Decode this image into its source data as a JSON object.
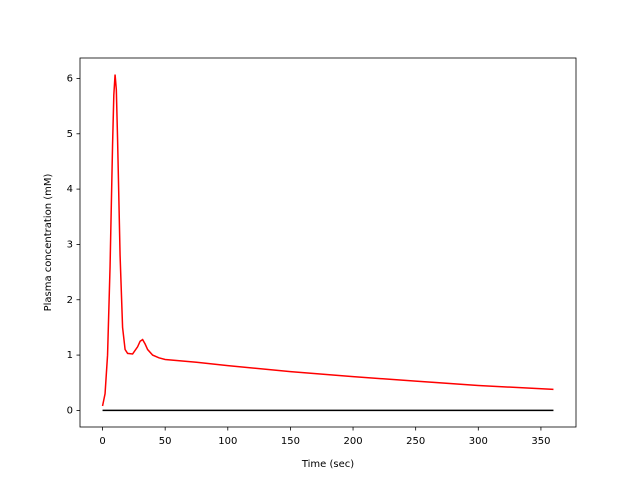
{
  "chart_data": {
    "type": "line",
    "xlabel": "Time (sec)",
    "ylabel": "Plasma concentration (mM)",
    "x": [
      0,
      2,
      4,
      6,
      8,
      9,
      10,
      11,
      12,
      14,
      16,
      18,
      20,
      24,
      28,
      30,
      32,
      34,
      36,
      40,
      45,
      50,
      75,
      100,
      150,
      200,
      250,
      300,
      360
    ],
    "series": [
      {
        "color": "#ff0000",
        "values": [
          0.08,
          0.3,
          1.0,
          2.6,
          4.8,
          5.7,
          6.07,
          5.8,
          4.9,
          2.8,
          1.5,
          1.1,
          1.03,
          1.02,
          1.15,
          1.25,
          1.28,
          1.2,
          1.1,
          1.0,
          0.95,
          0.92,
          0.87,
          0.81,
          0.7,
          0.61,
          0.53,
          0.45,
          0.38
        ]
      },
      {
        "color": "#000000",
        "values": [
          0,
          0,
          0,
          0,
          0,
          0,
          0,
          0,
          0,
          0,
          0,
          0,
          0,
          0,
          0,
          0,
          0,
          0,
          0,
          0,
          0,
          0,
          0,
          0,
          0,
          0,
          0,
          0,
          0
        ]
      }
    ],
    "xlim": [
      -18,
      378
    ],
    "ylim": [
      -0.3,
      6.37
    ],
    "xticks": [
      0,
      50,
      100,
      150,
      200,
      250,
      300,
      350
    ],
    "yticks": [
      0,
      1,
      2,
      3,
      4,
      5,
      6
    ],
    "grid": false
  }
}
